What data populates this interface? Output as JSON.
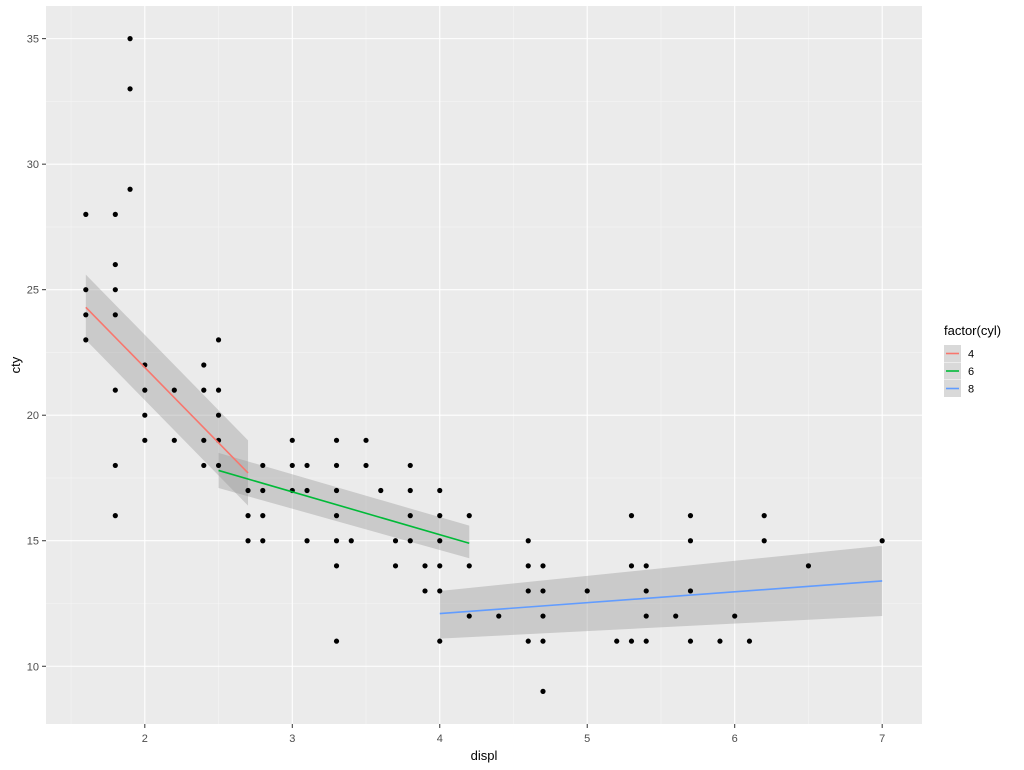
{
  "chart_data": {
    "type": "scatter",
    "xlabel": "displ",
    "ylabel": "cty",
    "xlim": [
      1.33,
      7.27
    ],
    "ylim": [
      7.7,
      36.3
    ],
    "x_ticks": [
      2,
      3,
      4,
      5,
      6,
      7
    ],
    "y_ticks": [
      10,
      15,
      20,
      25,
      30,
      35
    ],
    "grid": true,
    "legend": {
      "title": "factor(cyl)",
      "placement": "right",
      "entries": [
        "4",
        "6",
        "8"
      ]
    },
    "colors": {
      "panel": "#ebebeb",
      "grid_major": "#ffffff",
      "grid_minor": "#f5f5f5",
      "points": "#000000",
      "band": "#999999",
      "series_4": "#f8766d",
      "series_6": "#00ba38",
      "series_8": "#619cff"
    },
    "points": [
      [
        1.6,
        23
      ],
      [
        1.6,
        24
      ],
      [
        1.6,
        25
      ],
      [
        1.6,
        28
      ],
      [
        1.8,
        16
      ],
      [
        1.8,
        18
      ],
      [
        1.8,
        21
      ],
      [
        1.8,
        24
      ],
      [
        1.8,
        25
      ],
      [
        1.8,
        26
      ],
      [
        1.8,
        28
      ],
      [
        1.9,
        29
      ],
      [
        1.9,
        33
      ],
      [
        1.9,
        35
      ],
      [
        2.0,
        19
      ],
      [
        2.0,
        20
      ],
      [
        2.0,
        21
      ],
      [
        2.0,
        22
      ],
      [
        2.2,
        19
      ],
      [
        2.2,
        21
      ],
      [
        2.4,
        18
      ],
      [
        2.4,
        19
      ],
      [
        2.4,
        21
      ],
      [
        2.4,
        22
      ],
      [
        2.5,
        18
      ],
      [
        2.5,
        19
      ],
      [
        2.5,
        20
      ],
      [
        2.5,
        21
      ],
      [
        2.5,
        23
      ],
      [
        2.7,
        15
      ],
      [
        2.7,
        16
      ],
      [
        2.7,
        17
      ],
      [
        2.8,
        15
      ],
      [
        2.8,
        16
      ],
      [
        2.8,
        17
      ],
      [
        2.8,
        18
      ],
      [
        3.0,
        17
      ],
      [
        3.0,
        18
      ],
      [
        3.0,
        19
      ],
      [
        3.1,
        15
      ],
      [
        3.1,
        17
      ],
      [
        3.1,
        18
      ],
      [
        3.3,
        11
      ],
      [
        3.3,
        14
      ],
      [
        3.3,
        15
      ],
      [
        3.3,
        16
      ],
      [
        3.3,
        17
      ],
      [
        3.3,
        18
      ],
      [
        3.3,
        19
      ],
      [
        3.4,
        15
      ],
      [
        3.5,
        18
      ],
      [
        3.5,
        19
      ],
      [
        3.6,
        17
      ],
      [
        3.7,
        14
      ],
      [
        3.7,
        15
      ],
      [
        3.8,
        15
      ],
      [
        3.8,
        16
      ],
      [
        3.8,
        17
      ],
      [
        3.8,
        18
      ],
      [
        3.9,
        13
      ],
      [
        3.9,
        14
      ],
      [
        4.0,
        11
      ],
      [
        4.0,
        13
      ],
      [
        4.0,
        14
      ],
      [
        4.0,
        15
      ],
      [
        4.0,
        16
      ],
      [
        4.0,
        17
      ],
      [
        4.2,
        12
      ],
      [
        4.2,
        14
      ],
      [
        4.2,
        16
      ],
      [
        4.4,
        12
      ],
      [
        4.6,
        11
      ],
      [
        4.6,
        13
      ],
      [
        4.6,
        14
      ],
      [
        4.6,
        15
      ],
      [
        4.7,
        9
      ],
      [
        4.7,
        11
      ],
      [
        4.7,
        12
      ],
      [
        4.7,
        13
      ],
      [
        4.7,
        14
      ],
      [
        5.0,
        13
      ],
      [
        5.2,
        11
      ],
      [
        5.3,
        11
      ],
      [
        5.3,
        14
      ],
      [
        5.3,
        16
      ],
      [
        5.4,
        11
      ],
      [
        5.4,
        12
      ],
      [
        5.4,
        13
      ],
      [
        5.4,
        14
      ],
      [
        5.6,
        12
      ],
      [
        5.7,
        11
      ],
      [
        5.7,
        13
      ],
      [
        5.7,
        15
      ],
      [
        5.7,
        16
      ],
      [
        5.9,
        11
      ],
      [
        6.0,
        12
      ],
      [
        6.1,
        11
      ],
      [
        6.2,
        15
      ],
      [
        6.2,
        16
      ],
      [
        6.5,
        14
      ],
      [
        7.0,
        15
      ]
    ],
    "series": [
      {
        "name": "4",
        "x": [
          1.6,
          2.7
        ],
        "y": [
          24.3,
          17.7
        ],
        "lower": [
          23.0,
          16.4
        ],
        "upper": [
          25.6,
          19.0
        ]
      },
      {
        "name": "6",
        "x": [
          2.5,
          4.2
        ],
        "y": [
          17.8,
          14.9
        ],
        "lower": [
          17.1,
          14.3
        ],
        "upper": [
          18.5,
          15.6
        ]
      },
      {
        "name": "8",
        "x": [
          4.0,
          7.0
        ],
        "y": [
          12.1,
          13.4
        ],
        "lower": [
          11.1,
          12.0
        ],
        "upper": [
          13.0,
          14.8
        ]
      }
    ]
  }
}
